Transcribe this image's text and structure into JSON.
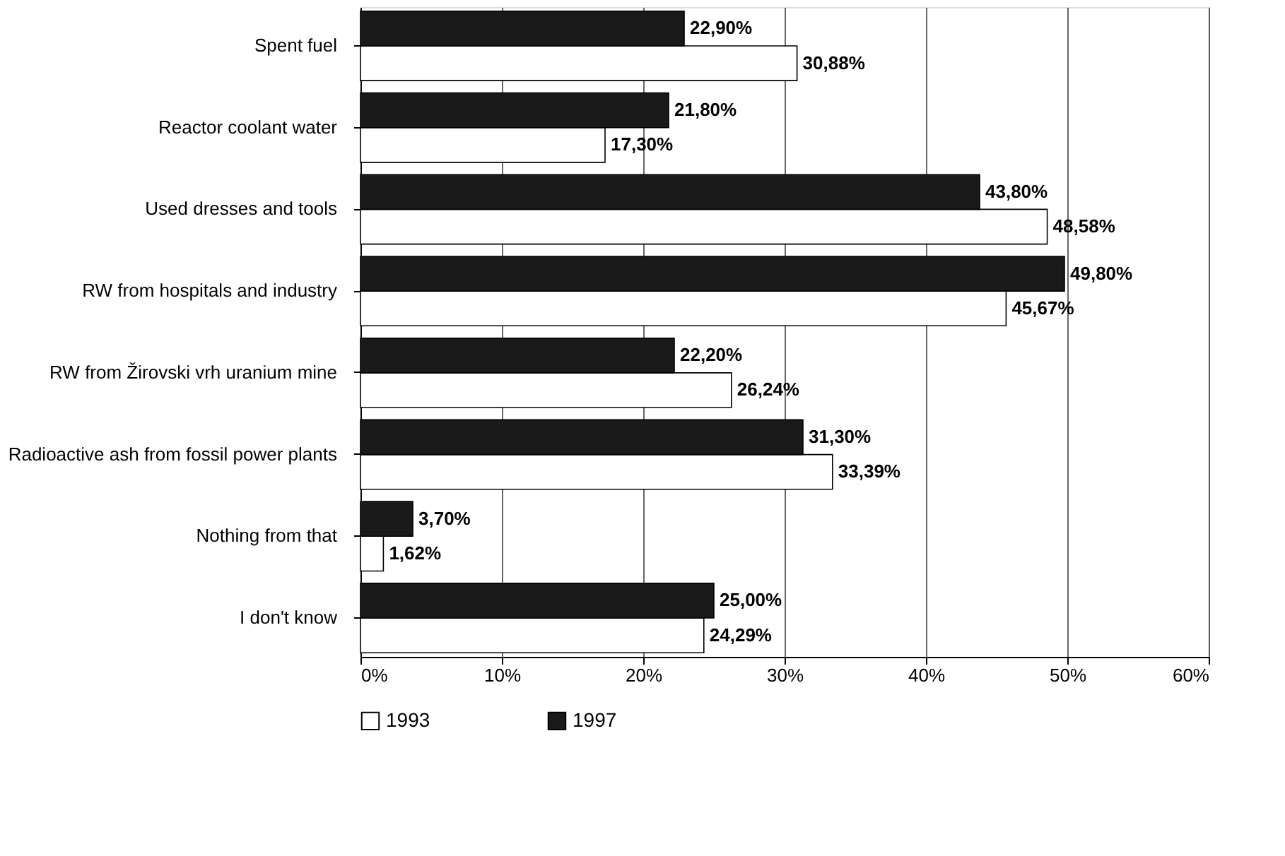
{
  "chart_data": {
    "type": "bar",
    "orientation": "horizontal",
    "categories": [
      "Spent fuel",
      "Reactor coolant water",
      "Used dresses and tools",
      "RW from hospitals and industry",
      "RW from Žirovski vrh uranium mine",
      "Radioactive ash from fossil power plants",
      "Nothing from that",
      "I don't know"
    ],
    "series": [
      {
        "name": "1993",
        "color": "#ffffff",
        "values": [
          30.88,
          17.3,
          48.58,
          45.67,
          26.24,
          33.39,
          1.62,
          24.29
        ],
        "value_labels": [
          "30,88%",
          "17,30%",
          "48,58%",
          "45,67%",
          "26,24%",
          "33,39%",
          "1,62%",
          "24,29%"
        ]
      },
      {
        "name": "1997",
        "color": "#1a1a1a",
        "values": [
          22.9,
          21.8,
          43.8,
          49.8,
          22.2,
          31.3,
          3.7,
          25.0
        ],
        "value_labels": [
          "22,90%",
          "21,80%",
          "43,80%",
          "49,80%",
          "22,20%",
          "31,30%",
          "3,70%",
          "25,00%"
        ]
      }
    ],
    "xlim": [
      0,
      60
    ],
    "xticks": [
      {
        "value": 0,
        "label": "0%"
      },
      {
        "value": 10,
        "label": "10%"
      },
      {
        "value": 20,
        "label": "20%"
      },
      {
        "value": 30,
        "label": "30%"
      },
      {
        "value": 40,
        "label": "40%"
      },
      {
        "value": 50,
        "label": "50%"
      },
      {
        "value": 60,
        "label": "60%"
      }
    ],
    "grid": "x",
    "legend": "bottom"
  }
}
